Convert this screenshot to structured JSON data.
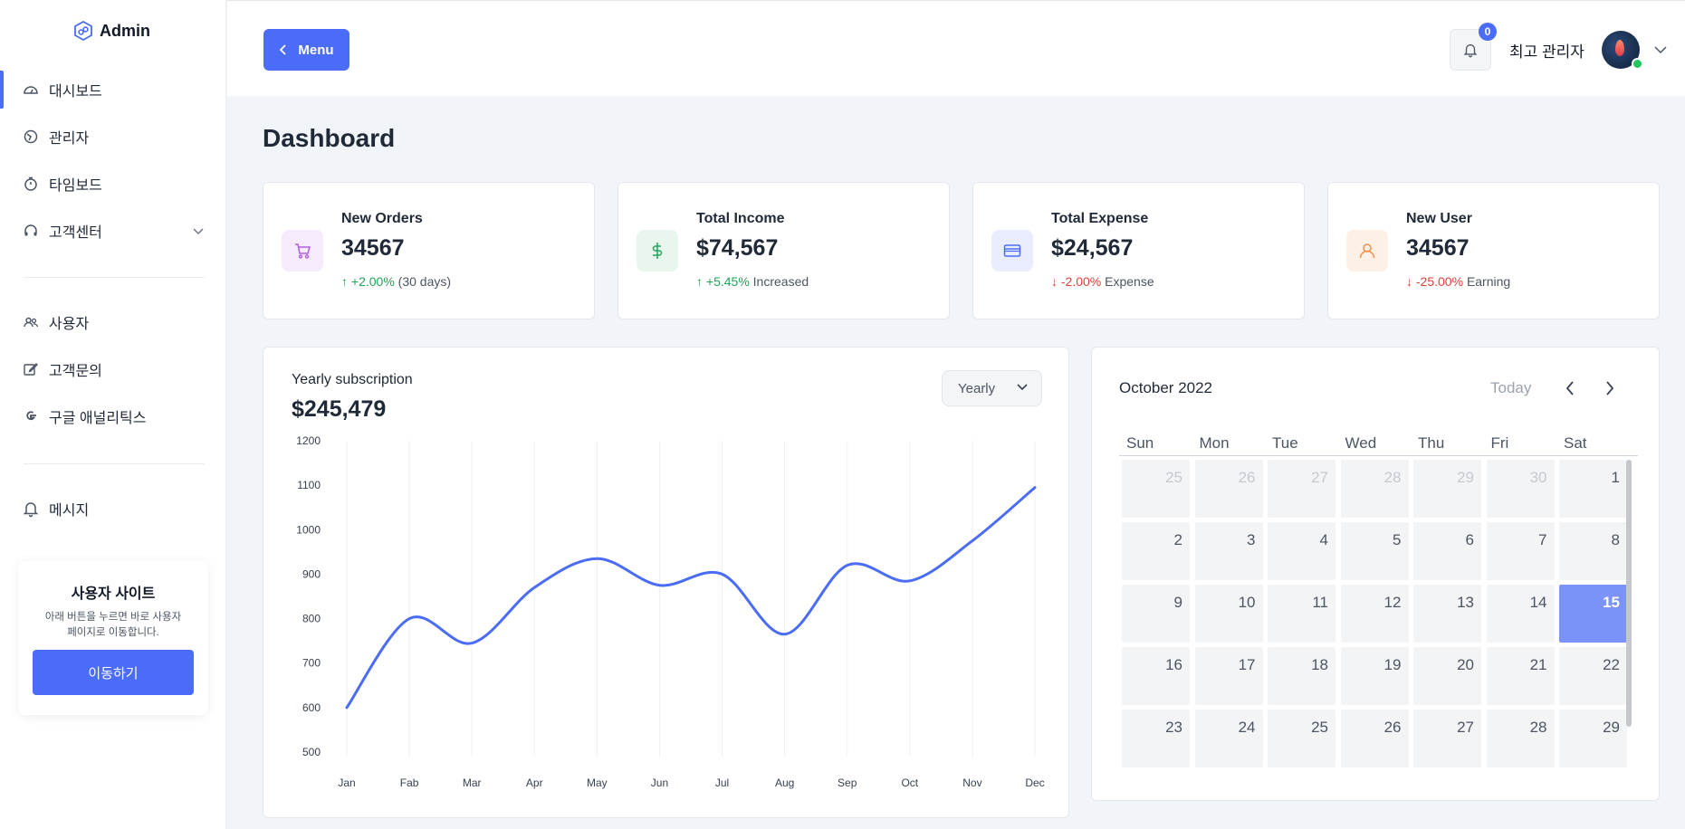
{
  "brand": {
    "name": "Admin"
  },
  "sidebar": {
    "items": [
      {
        "label": "대시보드",
        "icon": "dashboard-icon"
      },
      {
        "label": "관리자",
        "icon": "admin-icon"
      },
      {
        "label": "타임보드",
        "icon": "timer-icon"
      },
      {
        "label": "고객센터",
        "icon": "headset-icon"
      },
      {
        "label": "사용자",
        "icon": "users-icon"
      },
      {
        "label": "고객문의",
        "icon": "edit-icon"
      },
      {
        "label": "구글 애널리틱스",
        "icon": "google-icon"
      },
      {
        "label": "메시지",
        "icon": "bell-icon"
      }
    ],
    "card": {
      "title": "사용자 사이트",
      "desc_line1": "아래 버튼을 누르면 바로 사용자",
      "desc_line2": "페이지로 이동합니다.",
      "button": "이동하기"
    }
  },
  "header": {
    "menu_label": "Menu",
    "notification_count": "0",
    "admin_name": "최고 관리자"
  },
  "page": {
    "title": "Dashboard"
  },
  "stats": [
    {
      "label": "New Orders",
      "value": "34567",
      "trend_arrow": "↑",
      "trend": "+2.00%",
      "note": "(30 days)",
      "direction": "up"
    },
    {
      "label": "Total Income",
      "value": "$74,567",
      "trend_arrow": "↑",
      "trend": "+5.45%",
      "note": "Increased",
      "direction": "up"
    },
    {
      "label": "Total Expense",
      "value": "$24,567",
      "trend_arrow": "↓",
      "trend": "-2.00%",
      "note": "Expense",
      "direction": "down"
    },
    {
      "label": "New User",
      "value": "34567",
      "trend_arrow": "↓",
      "trend": "-25.00%",
      "note": "Earning",
      "direction": "down"
    }
  ],
  "subscription": {
    "title": "Yearly subscription",
    "value": "$245,479",
    "period": "Yearly"
  },
  "chart_data": {
    "type": "line",
    "title": "Yearly subscription",
    "categories": [
      "Jan",
      "Fab",
      "Mar",
      "Apr",
      "May",
      "Jun",
      "Jul",
      "Aug",
      "Sep",
      "Oct",
      "Nov",
      "Dec"
    ],
    "series": [
      {
        "name": "Yearly subscription",
        "values": [
          600,
          800,
          745,
          870,
          935,
          875,
          900,
          765,
          920,
          885,
          975,
          1095
        ]
      }
    ],
    "y_ticks": [
      500,
      600,
      700,
      800,
      900,
      1000,
      1100,
      1200
    ],
    "ylim": [
      500,
      1200
    ],
    "grid": "vertical",
    "color": "#4a6cf7"
  },
  "calendar": {
    "month_label": "October 2022",
    "today_label": "Today",
    "weekdays": [
      "Sun",
      "Mon",
      "Tue",
      "Wed",
      "Thu",
      "Fri",
      "Sat"
    ],
    "weeks": [
      [
        "25",
        "26",
        "27",
        "28",
        "29",
        "30",
        "1"
      ],
      [
        "2",
        "3",
        "4",
        "5",
        "6",
        "7",
        "8"
      ],
      [
        "9",
        "10",
        "11",
        "12",
        "13",
        "14",
        "15"
      ],
      [
        "16",
        "17",
        "18",
        "19",
        "20",
        "21",
        "22"
      ],
      [
        "23",
        "24",
        "25",
        "26",
        "27",
        "28",
        "29"
      ]
    ],
    "selected": "15"
  },
  "colors": {
    "accent": "#4a6cf7",
    "up": "#22a35a",
    "down": "#e0413b",
    "orders_bg": "#f5ebfd",
    "income_bg": "#e8f6ee",
    "expense_bg": "#e9edfe",
    "user_bg": "#fdf0e6"
  }
}
